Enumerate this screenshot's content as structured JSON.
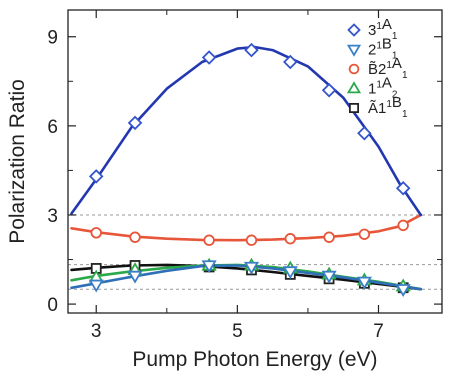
{
  "chart_data": {
    "type": "scatter",
    "xlabel": "Pump Photon Energy (eV)",
    "ylabel": "Polarization Ratio",
    "xlim": [
      2.6,
      7.9
    ],
    "ylim": [
      -0.3,
      9.9
    ],
    "x_ticks": [
      3,
      5,
      7
    ],
    "x_tick_labels": [
      "3",
      "5",
      "7"
    ],
    "x_minor_ticks": [
      4,
      6
    ],
    "y_ticks": [
      0,
      3,
      6,
      9
    ],
    "y_tick_labels": [
      "0",
      "3",
      "6",
      "9"
    ],
    "reference_lines": [
      3.0,
      1.33,
      0.5
    ],
    "legend_position": "top-right",
    "series": [
      {
        "name_parts": [
          [
            "3",
            ""
          ],
          [
            "1",
            "sup"
          ],
          [
            "A",
            ""
          ],
          [
            "1",
            "sub"
          ]
        ],
        "marker": "diamond",
        "color": "#3355cc",
        "points": [
          [
            3.0,
            4.3
          ],
          [
            3.55,
            6.1
          ],
          [
            4.6,
            8.3
          ],
          [
            5.2,
            8.55
          ],
          [
            5.75,
            8.15
          ],
          [
            6.3,
            7.2
          ],
          [
            6.8,
            5.75
          ],
          [
            7.35,
            3.9
          ]
        ],
        "fit_color": "#2338b0",
        "fit": [
          [
            2.65,
            3.05
          ],
          [
            3.0,
            4.2
          ],
          [
            3.5,
            5.95
          ],
          [
            4.0,
            7.25
          ],
          [
            4.5,
            8.15
          ],
          [
            5.0,
            8.6
          ],
          [
            5.25,
            8.65
          ],
          [
            5.5,
            8.55
          ],
          [
            6.0,
            8.0
          ],
          [
            6.5,
            6.95
          ],
          [
            7.0,
            5.3
          ],
          [
            7.3,
            4.05
          ],
          [
            7.6,
            3.0
          ]
        ]
      },
      {
        "name_parts": [
          [
            "2",
            ""
          ],
          [
            "1",
            "sup"
          ],
          [
            "B",
            ""
          ],
          [
            "1",
            "sub"
          ]
        ],
        "marker": "triangle-down",
        "color": "#3a7fc8",
        "points": [
          [
            3.0,
            0.65
          ],
          [
            3.55,
            0.95
          ],
          [
            4.6,
            1.3
          ],
          [
            5.2,
            1.25
          ],
          [
            5.75,
            1.1
          ],
          [
            6.3,
            0.95
          ],
          [
            6.8,
            0.75
          ],
          [
            7.35,
            0.5
          ]
        ],
        "fit_color": "#2e6fb8",
        "fit": [
          [
            2.65,
            0.55
          ],
          [
            3.0,
            0.7
          ],
          [
            3.5,
            0.92
          ],
          [
            4.0,
            1.12
          ],
          [
            4.5,
            1.28
          ],
          [
            5.0,
            1.3
          ],
          [
            5.5,
            1.2
          ],
          [
            6.0,
            1.05
          ],
          [
            6.5,
            0.9
          ],
          [
            7.0,
            0.72
          ],
          [
            7.6,
            0.5
          ]
        ]
      },
      {
        "name_parts": [
          [
            "B̃",
            ""
          ],
          [
            "2",
            ""
          ],
          [
            "1",
            "sup"
          ],
          [
            "A",
            ""
          ],
          [
            "1",
            "sub"
          ]
        ],
        "marker": "circle",
        "color": "#e8563a",
        "points": [
          [
            3.0,
            2.4
          ],
          [
            3.55,
            2.25
          ],
          [
            4.6,
            2.15
          ],
          [
            5.2,
            2.15
          ],
          [
            5.75,
            2.2
          ],
          [
            6.3,
            2.25
          ],
          [
            6.8,
            2.35
          ],
          [
            7.35,
            2.65
          ]
        ],
        "fit_color": "#e8563a",
        "fit": [
          [
            2.65,
            2.55
          ],
          [
            3.0,
            2.42
          ],
          [
            3.5,
            2.28
          ],
          [
            4.0,
            2.2
          ],
          [
            4.5,
            2.16
          ],
          [
            5.0,
            2.15
          ],
          [
            5.5,
            2.17
          ],
          [
            6.0,
            2.22
          ],
          [
            6.5,
            2.3
          ],
          [
            7.0,
            2.45
          ],
          [
            7.3,
            2.62
          ],
          [
            7.6,
            3.0
          ]
        ]
      },
      {
        "name_parts": [
          [
            "1",
            ""
          ],
          [
            "1",
            "sup"
          ],
          [
            "A",
            ""
          ],
          [
            "2",
            "sub"
          ]
        ],
        "marker": "triangle-up",
        "color": "#2aa84a",
        "points": [
          [
            3.0,
            0.9
          ],
          [
            3.55,
            1.15
          ],
          [
            4.6,
            1.3
          ],
          [
            5.2,
            1.3
          ],
          [
            5.75,
            1.2
          ],
          [
            6.3,
            1.0
          ],
          [
            6.8,
            0.8
          ],
          [
            7.35,
            0.6
          ]
        ],
        "fit_color": "#2aa84a",
        "fit": [
          [
            2.65,
            0.8
          ],
          [
            3.0,
            0.95
          ],
          [
            3.5,
            1.1
          ],
          [
            4.0,
            1.22
          ],
          [
            4.5,
            1.3
          ],
          [
            5.0,
            1.32
          ],
          [
            5.5,
            1.25
          ],
          [
            6.0,
            1.1
          ],
          [
            6.5,
            0.92
          ],
          [
            7.0,
            0.75
          ],
          [
            7.6,
            0.5
          ]
        ]
      },
      {
        "name_parts": [
          [
            "Ã",
            ""
          ],
          [
            "1",
            ""
          ],
          [
            "1",
            "sup"
          ],
          [
            "B",
            ""
          ],
          [
            "1",
            "sub"
          ]
        ],
        "marker": "square",
        "color": "#222222",
        "points": [
          [
            3.0,
            1.2
          ],
          [
            3.55,
            1.3
          ],
          [
            4.6,
            1.25
          ],
          [
            5.2,
            1.15
          ],
          [
            5.75,
            1.0
          ],
          [
            6.3,
            0.85
          ],
          [
            6.8,
            0.7
          ],
          [
            7.35,
            0.55
          ]
        ],
        "fit_color": "#111111",
        "fit": [
          [
            2.65,
            1.15
          ],
          [
            3.0,
            1.22
          ],
          [
            3.5,
            1.3
          ],
          [
            4.0,
            1.32
          ],
          [
            4.5,
            1.28
          ],
          [
            5.0,
            1.2
          ],
          [
            5.5,
            1.08
          ],
          [
            6.0,
            0.95
          ],
          [
            6.5,
            0.82
          ],
          [
            7.0,
            0.68
          ],
          [
            7.6,
            0.5
          ]
        ]
      }
    ]
  }
}
